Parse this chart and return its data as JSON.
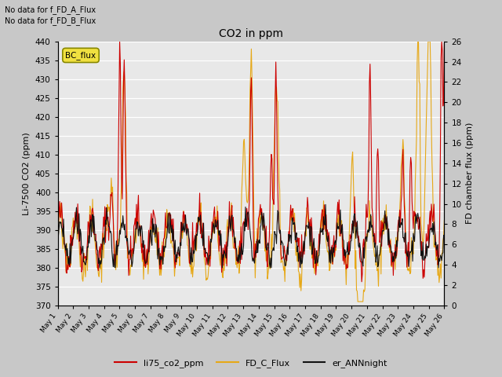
{
  "title": "CO2 in ppm",
  "ylabel_left": "Li-7500 CO2 (ppm)",
  "ylabel_right": "FD chamber flux (ppm)",
  "ylim_left": [
    370,
    440
  ],
  "ylim_right": [
    0,
    26
  ],
  "yticks_left": [
    370,
    375,
    380,
    385,
    390,
    395,
    400,
    405,
    410,
    415,
    420,
    425,
    430,
    435,
    440
  ],
  "yticks_right": [
    0,
    2,
    4,
    6,
    8,
    10,
    12,
    14,
    16,
    18,
    20,
    22,
    24,
    26
  ],
  "annotation_text": "No data for f_FD_A_Flux\nNo data for f_FD_B_Flux",
  "bc_flux_label": "BC_flux",
  "legend_entries": [
    "li75_co2_ppm",
    "FD_C_Flux",
    "er_ANNnight"
  ],
  "line_colors": {
    "li75_co2_ppm": "#cc0000",
    "FD_C_Flux": "#e6a817",
    "er_ANNnight": "#111111"
  },
  "fig_bg_color": "#c8c8c8",
  "plot_bg_color": "#e8e8e8",
  "n_days": 25,
  "n_points": 600
}
